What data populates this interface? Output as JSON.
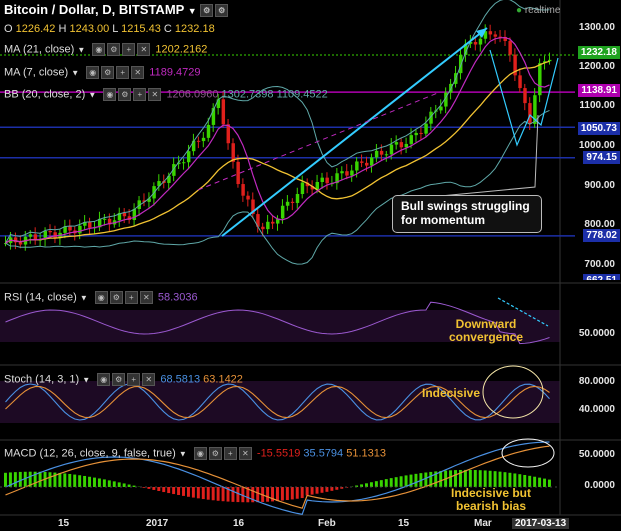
{
  "header": {
    "symbol_title": "Bitcoin / Dollar, D, BITSTAMP",
    "realtime": "realtime",
    "ohlc": {
      "o_label": "O",
      "o": "1226.42",
      "h_label": "H",
      "h": "1243.00",
      "l_label": "L",
      "l": "1215.43",
      "c_label": "C",
      "c": "1232.18"
    }
  },
  "indicators": {
    "ma21": {
      "label": "MA (21, close)",
      "value": "1202.2162"
    },
    "ma7": {
      "label": "MA (7, close)",
      "value": "1189.4729"
    },
    "bb": {
      "label": "BB (20, close, 2)",
      "v1": "1206.0960",
      "v2": "1302.7398",
      "v3": "1109.4522"
    },
    "rsi": {
      "label": "RSI (14, close)",
      "value": "58.3036"
    },
    "stoch": {
      "label": "Stoch (14, 3, 1)",
      "v1": "68.5813",
      "v2": "63.1422"
    },
    "macd": {
      "label": "MACD (12, 26, close, 9, false, true)",
      "v1": "-15.5519",
      "v2": "35.5794",
      "v3": "51.1313"
    }
  },
  "price_tags": [
    {
      "value": "1232.18",
      "color": "#1fa31f"
    },
    {
      "value": "1138.91",
      "color": "#b000b0"
    },
    {
      "value": "1050.73",
      "color": "#1c2fa8"
    },
    {
      "value": "974.15",
      "color": "#1c2fa8"
    },
    {
      "value": "778.02",
      "color": "#1c2fa8"
    },
    {
      "value": "662.51",
      "color": "#1c2fa8"
    }
  ],
  "price_axis": [
    "1300.00",
    "1200.00",
    "1100.00",
    "1000.00",
    "900.00",
    "800.00",
    "700.00"
  ],
  "rsi_axis": [
    "50.0000"
  ],
  "stoch_axis": [
    "80.0000",
    "40.0000"
  ],
  "macd_axis": [
    "50.0000",
    "0.0000"
  ],
  "x_axis": [
    "15",
    "2017",
    "16",
    "Feb",
    "15",
    "Mar",
    "2017-03-13"
  ],
  "annotations": {
    "callout": "Bull swings struggling for momentum",
    "rsi_note": "Downward convergence",
    "stoch_note": "Indecisive",
    "macd_note": "Indecisive but bearish bias"
  },
  "colors": {
    "up": "#39d400",
    "down": "#e0201c",
    "ma21": "#f1c232",
    "ma7": "#c02ac0",
    "bb": "#5fa8a8",
    "hline": "#1c2fa8",
    "purple": "#b000b0",
    "trend": "#33ccff",
    "rsi": "#9b59d0",
    "stoch_k": "#4a90e2",
    "stoch_d": "#e69138",
    "macd": "#4a90e2",
    "signal": "#e69138"
  }
}
